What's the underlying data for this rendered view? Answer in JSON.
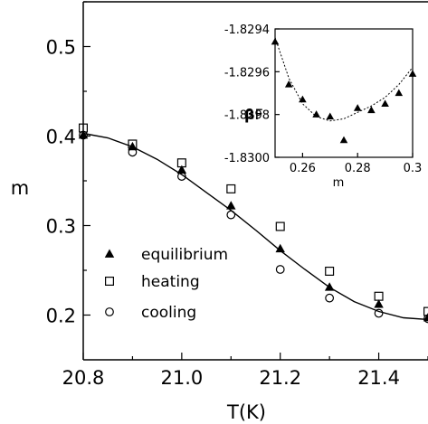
{
  "chart_data": [
    {
      "type": "scatter",
      "xlabel": "T(K)",
      "ylabel": "m",
      "xlim": [
        20.8,
        21.5
      ],
      "ylim": [
        0.15,
        0.55
      ],
      "xticks": [
        "20.8",
        "21.0",
        "21.2",
        "21.4"
      ],
      "yticks": [
        "0.2",
        "0.3",
        "0.4",
        "0.5"
      ],
      "grid": false,
      "legend_position": "lower-left",
      "series": [
        {
          "name": "equilibrium",
          "marker": "triangle-filled",
          "x": [
            20.8,
            20.9,
            21.0,
            21.1,
            21.2,
            21.3,
            21.4,
            21.5
          ],
          "y": [
            0.401,
            0.388,
            0.362,
            0.322,
            0.274,
            0.231,
            0.212,
            0.197
          ]
        },
        {
          "name": "heating",
          "marker": "square-open",
          "x": [
            20.8,
            20.9,
            21.0,
            21.1,
            21.2,
            21.3,
            21.4,
            21.5
          ],
          "y": [
            0.409,
            0.391,
            0.37,
            0.341,
            0.299,
            0.249,
            0.221,
            0.204
          ]
        },
        {
          "name": "cooling",
          "marker": "circle-open",
          "x": [
            20.8,
            20.9,
            21.0,
            21.1,
            21.2,
            21.3,
            21.4,
            21.5
          ],
          "y": [
            0.401,
            0.382,
            0.355,
            0.312,
            0.251,
            0.219,
            0.202,
            0.196
          ]
        },
        {
          "name": "",
          "style": "solid-line",
          "x": [
            20.8,
            20.85,
            20.9,
            20.95,
            21.0,
            21.05,
            21.1,
            21.15,
            21.2,
            21.25,
            21.3,
            21.35,
            21.4,
            21.45,
            21.5
          ],
          "y": [
            0.403,
            0.398,
            0.388,
            0.374,
            0.357,
            0.337,
            0.317,
            0.295,
            0.272,
            0.251,
            0.231,
            0.215,
            0.204,
            0.197,
            0.195
          ]
        }
      ]
    },
    {
      "type": "scatter",
      "inset": true,
      "xlabel": "m",
      "ylabel_prefix": "β",
      "ylabel_suffix": "F",
      "xlim": [
        0.25,
        0.3
      ],
      "ylim": [
        -1.83,
        -1.8294
      ],
      "xticks": [
        "0.26",
        "0.28",
        "0.3"
      ],
      "yticks": [
        "-1.8294",
        "-1.8296",
        "-1.8298",
        "-1.8300"
      ],
      "series": [
        {
          "name": "",
          "marker": "triangle-filled",
          "x": [
            0.25,
            0.255,
            0.26,
            0.265,
            0.27,
            0.275,
            0.28,
            0.285,
            0.29,
            0.295,
            0.3
          ],
          "y": [
            -1.82946,
            -1.82966,
            -1.82973,
            -1.8298,
            -1.82981,
            -1.82992,
            -1.82977,
            -1.82978,
            -1.82975,
            -1.8297,
            -1.82961
          ]
        },
        {
          "name": "",
          "style": "dotted-line",
          "x": [
            0.25,
            0.255,
            0.26,
            0.265,
            0.27,
            0.275,
            0.28,
            0.285,
            0.29,
            0.295,
            0.3
          ],
          "y": [
            -1.82944,
            -1.82963,
            -1.82975,
            -1.82981,
            -1.82983,
            -1.82982,
            -1.82979,
            -1.82976,
            -1.82972,
            -1.82966,
            -1.82958
          ]
        }
      ]
    }
  ]
}
